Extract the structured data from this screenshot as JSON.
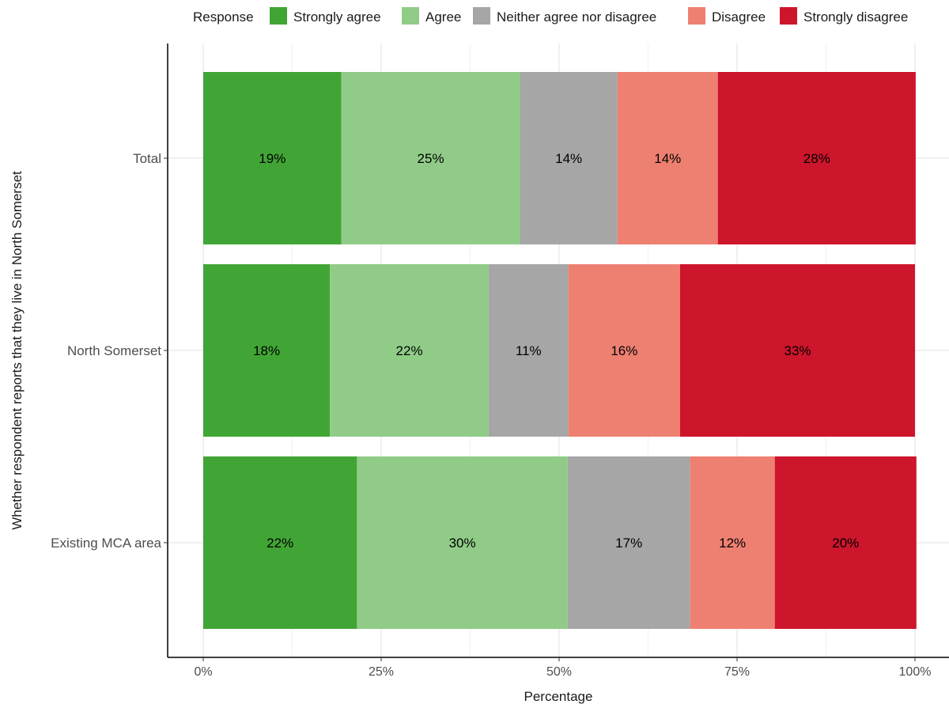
{
  "chart_data": {
    "type": "bar",
    "orientation": "horizontal",
    "stacked": true,
    "normalized_percent": true,
    "xlabel": "Percentage",
    "ylabel": "Whether respondent reports that they live in North Somerset",
    "xlim": [
      0,
      100
    ],
    "x_ticks": [
      "0%",
      "25%",
      "50%",
      "75%",
      "100%"
    ],
    "x_tick_values": [
      0,
      25,
      50,
      75,
      100
    ],
    "grid": true,
    "legend": {
      "title": "Response",
      "position": "top"
    },
    "categories": [
      "Total",
      "North Somerset",
      "Existing MCA area"
    ],
    "series": [
      {
        "name": "Strongly agree",
        "color": "#41a535",
        "values": [
          19.4,
          17.8,
          21.6
        ],
        "labels": [
          "19%",
          "18%",
          "22%"
        ]
      },
      {
        "name": "Agree",
        "color": "#90cc88",
        "values": [
          25.1,
          22.3,
          29.6
        ],
        "labels": [
          "25%",
          "22%",
          "30%"
        ]
      },
      {
        "name": "Neither agree nor disagree",
        "color": "#a6a6a6",
        "values": [
          13.7,
          11.2,
          17.2
        ],
        "labels": [
          "14%",
          "11%",
          "17%"
        ]
      },
      {
        "name": "Disagree",
        "color": "#ee8072",
        "values": [
          14.1,
          15.7,
          11.9
        ],
        "labels": [
          "14%",
          "16%",
          "12%"
        ]
      },
      {
        "name": "Strongly disagree",
        "color": "#cd152b",
        "values": [
          27.8,
          33.0,
          19.9
        ],
        "labels": [
          "28%",
          "33%",
          "20%"
        ]
      }
    ]
  }
}
